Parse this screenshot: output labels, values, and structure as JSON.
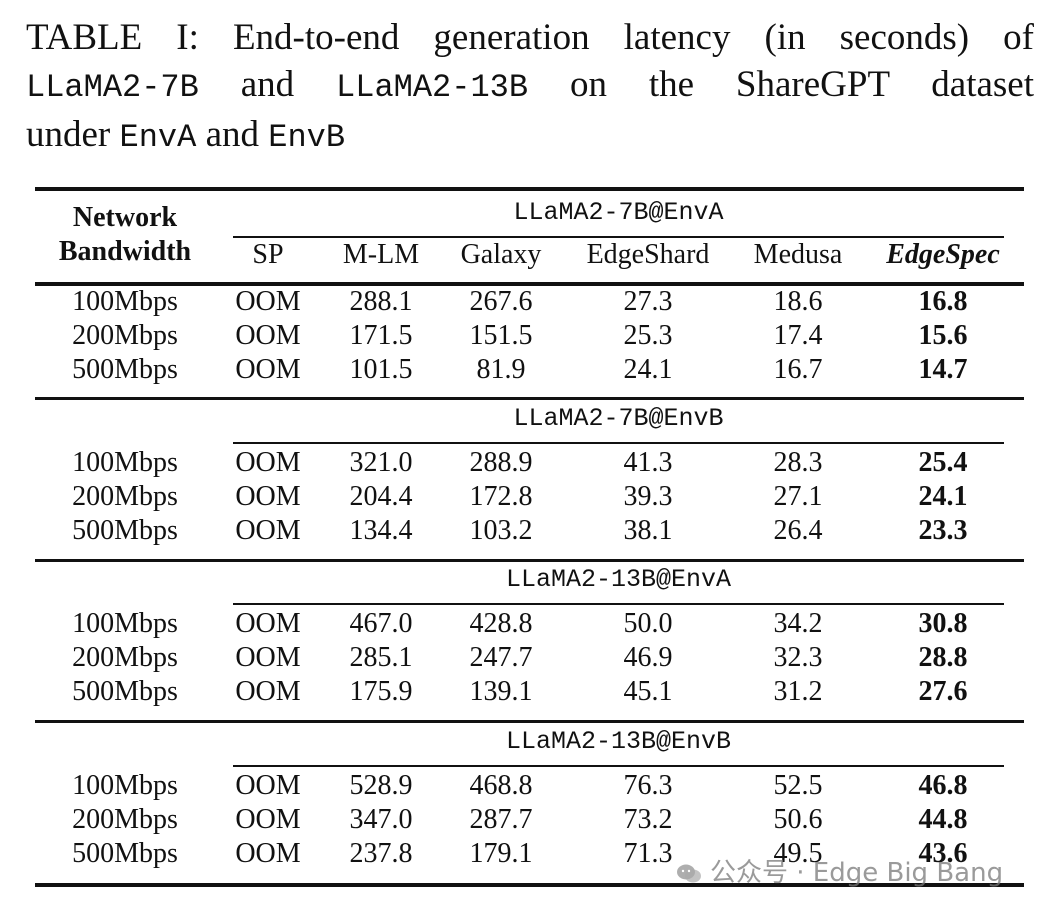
{
  "caption": {
    "line1": [
      "TABLE I: End-to-end generation latency (in seconds) of"
    ],
    "line2": [
      {
        "text": "LLaMA2-7B",
        "mono": true
      },
      {
        "text": " and ",
        "mono": false
      },
      {
        "text": "LLaMA2-13B",
        "mono": true
      },
      {
        "text": " on the ShareGPT dataset",
        "mono": false
      }
    ],
    "line3": [
      {
        "text": "under ",
        "mono": false
      },
      {
        "text": "EnvA",
        "mono": true
      },
      {
        "text": " and ",
        "mono": false
      },
      {
        "text": "EnvB",
        "mono": true
      }
    ]
  },
  "table": {
    "corner_header_line1": "Network",
    "corner_header_line2": "Bandwidth",
    "columns": [
      "SP",
      "M-LM",
      "Galaxy",
      "EdgeShard",
      "Medusa",
      "EdgeSpec"
    ],
    "groups": [
      {
        "title": "LLaMA2-7B@EnvA",
        "rows": [
          {
            "bandwidth": "100Mbps",
            "values": [
              "OOM",
              "288.1",
              "267.6",
              "27.3",
              "18.6",
              "16.8"
            ]
          },
          {
            "bandwidth": "200Mbps",
            "values": [
              "OOM",
              "171.5",
              "151.5",
              "25.3",
              "17.4",
              "15.6"
            ]
          },
          {
            "bandwidth": "500Mbps",
            "values": [
              "OOM",
              "101.5",
              "81.9",
              "24.1",
              "16.7",
              "14.7"
            ]
          }
        ]
      },
      {
        "title": "LLaMA2-7B@EnvB",
        "rows": [
          {
            "bandwidth": "100Mbps",
            "values": [
              "OOM",
              "321.0",
              "288.9",
              "41.3",
              "28.3",
              "25.4"
            ]
          },
          {
            "bandwidth": "200Mbps",
            "values": [
              "OOM",
              "204.4",
              "172.8",
              "39.3",
              "27.1",
              "24.1"
            ]
          },
          {
            "bandwidth": "500Mbps",
            "values": [
              "OOM",
              "134.4",
              "103.2",
              "38.1",
              "26.4",
              "23.3"
            ]
          }
        ]
      },
      {
        "title": "LLaMA2-13B@EnvA",
        "rows": [
          {
            "bandwidth": "100Mbps",
            "values": [
              "OOM",
              "467.0",
              "428.8",
              "50.0",
              "34.2",
              "30.8"
            ]
          },
          {
            "bandwidth": "200Mbps",
            "values": [
              "OOM",
              "285.1",
              "247.7",
              "46.9",
              "32.3",
              "28.8"
            ]
          },
          {
            "bandwidth": "500Mbps",
            "values": [
              "OOM",
              "175.9",
              "139.1",
              "45.1",
              "31.2",
              "27.6"
            ]
          }
        ]
      },
      {
        "title": "LLaMA2-13B@EnvB",
        "rows": [
          {
            "bandwidth": "100Mbps",
            "values": [
              "OOM",
              "528.9",
              "468.8",
              "76.3",
              "52.5",
              "46.8"
            ]
          },
          {
            "bandwidth": "200Mbps",
            "values": [
              "OOM",
              "347.0",
              "287.7",
              "73.2",
              "50.6",
              "44.8"
            ]
          },
          {
            "bandwidth": "500Mbps",
            "values": [
              "OOM",
              "237.8",
              "179.1",
              "71.3",
              "49.5",
              "43.6"
            ]
          }
        ]
      }
    ]
  },
  "watermark": {
    "text": "公众号 · Edge Big Bang",
    "icon": "wechat-icon"
  }
}
